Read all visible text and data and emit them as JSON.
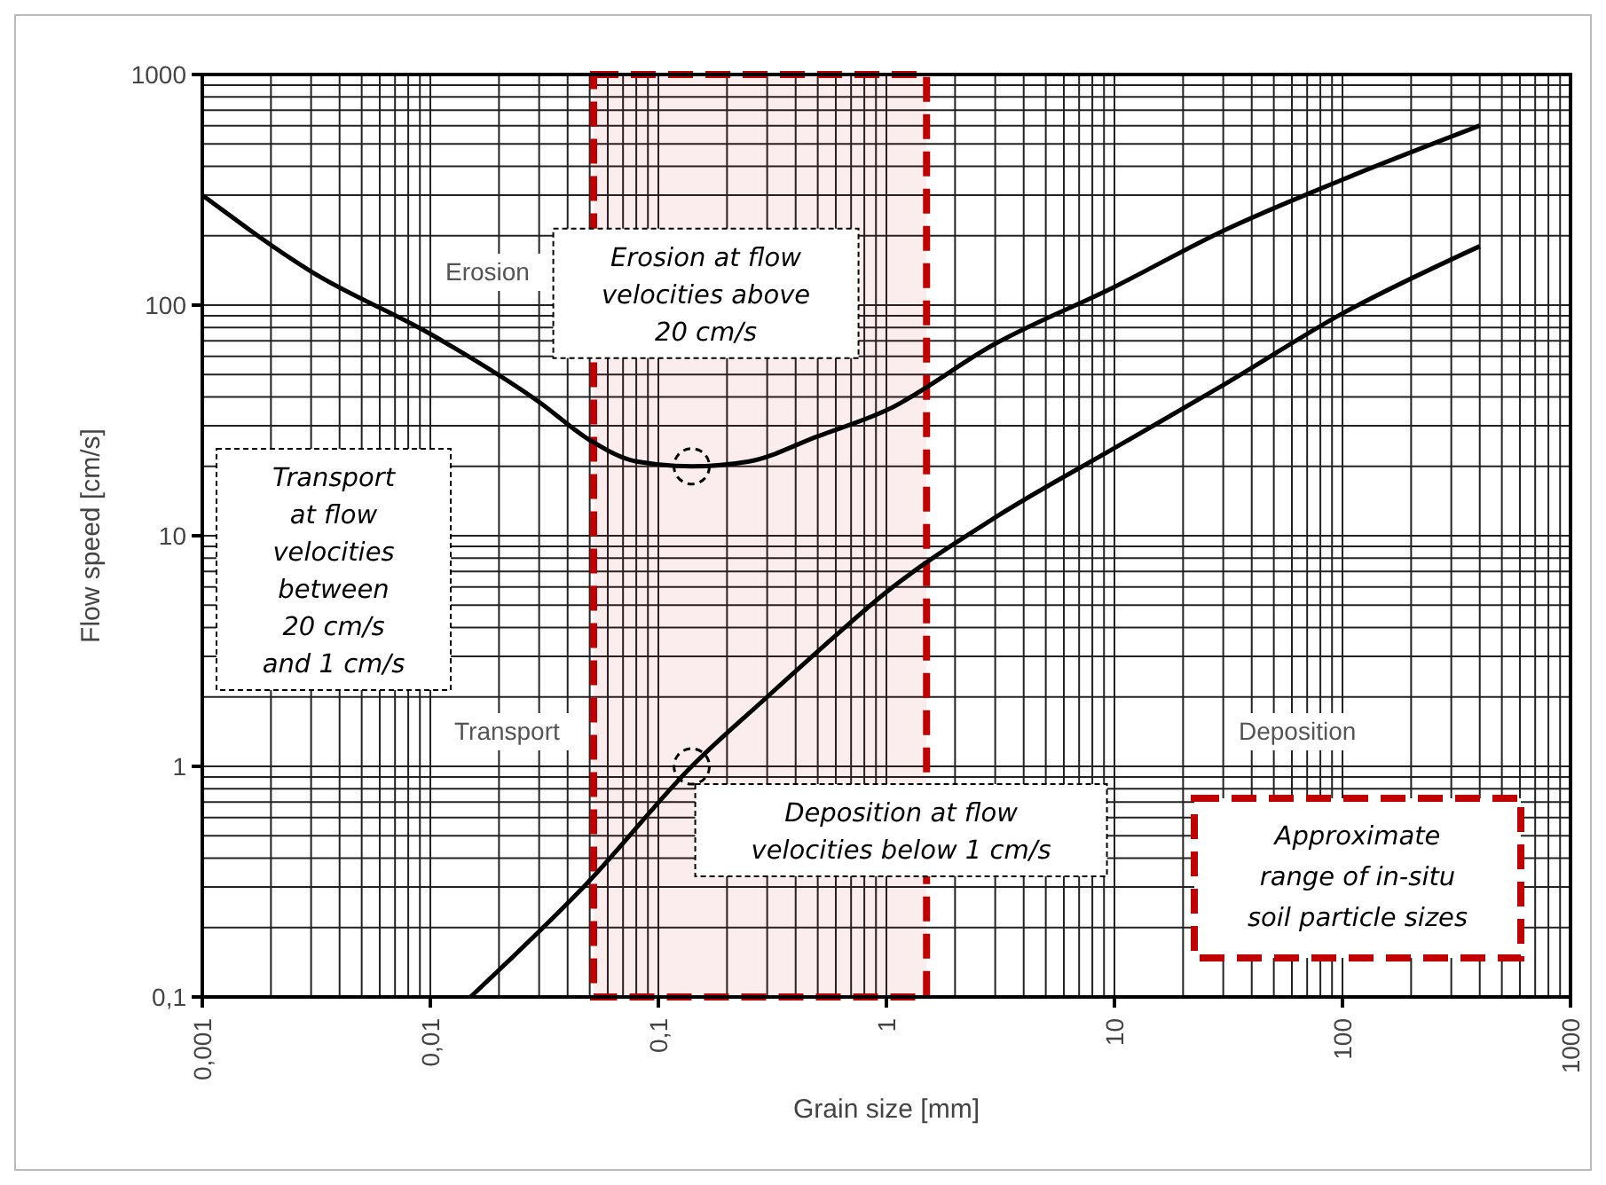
{
  "chart_data": {
    "type": "line",
    "xlabel": "Grain size [mm]",
    "ylabel": "Flow speed [cm/s]",
    "log": "xy",
    "grid": true,
    "marker": "none",
    "line_style": "solid",
    "xlim": [
      0.001,
      1000
    ],
    "ylim": [
      0.1,
      1000
    ],
    "xticks": [
      {
        "value": 0.001,
        "label": "0,001"
      },
      {
        "value": 0.01,
        "label": "0,01"
      },
      {
        "value": 0.1,
        "label": "0,1"
      },
      1,
      10,
      100,
      1000
    ],
    "yticks": [
      {
        "value": 0.1,
        "label": "0,1"
      },
      1,
      10,
      100,
      1000
    ],
    "series": [
      {
        "color": "#000000",
        "x": [
          0.001,
          0.003,
          0.01,
          0.03,
          0.05,
          0.08,
          0.14,
          0.25,
          0.5,
          1,
          3,
          10,
          30,
          100,
          400
        ],
        "values": [
          300,
          140,
          75,
          38,
          26,
          21,
          20,
          21,
          27,
          35,
          68,
          120,
          210,
          350,
          600
        ]
      },
      {
        "color": "#000000",
        "x": [
          0.015,
          0.05,
          0.14,
          0.3,
          0.6,
          1,
          3,
          10,
          30,
          100,
          400
        ],
        "values": [
          0.1,
          0.32,
          1,
          2,
          3.7,
          5.7,
          12,
          24,
          45,
          92,
          180
        ]
      }
    ],
    "bands": [
      {
        "axis": "x",
        "from": 0.052,
        "to": 1.5,
        "color": "#c00000"
      }
    ],
    "annotations": [
      "Erosion",
      "Transport",
      "Deposition",
      "Erosion at flow velocities above 20 cm/s",
      {
        "text": "Deposition at flow velocities below 1 cm/s",
        "x": 0.14,
        "y": 1
      },
      "Transport at flow velocities between 20 cm/s and 1 cm/s",
      "Approximate range of in-situ soil particle sizes"
    ]
  }
}
